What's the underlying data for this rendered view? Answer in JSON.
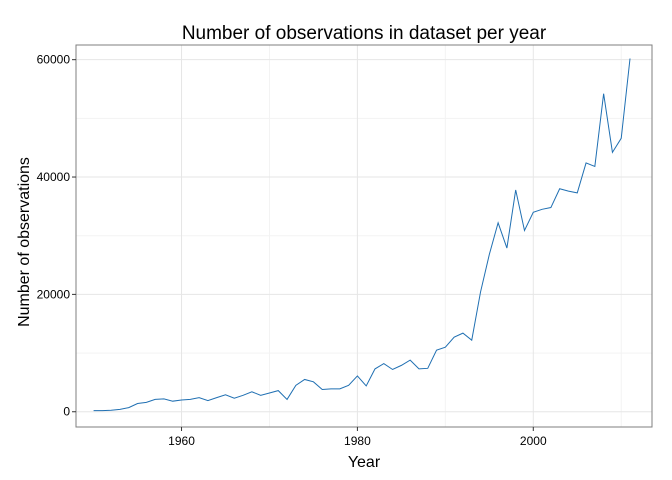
{
  "chart_data": {
    "type": "line",
    "title": "Number of observations in dataset per year",
    "xlabel": "Year",
    "ylabel": "Number of observations",
    "xlim": [
      1948,
      2013.5
    ],
    "ylim": [
      -2600,
      62500
    ],
    "x_ticks": [
      1960,
      1980,
      2000
    ],
    "y_ticks": [
      0,
      20000,
      40000,
      60000
    ],
    "x_tick_labels": [
      "1960",
      "1980",
      "2000"
    ],
    "y_tick_labels": [
      "0",
      "20000",
      "40000",
      "60000"
    ],
    "grid": true,
    "legend": "none",
    "line_color": "#1f6fb2",
    "x": [
      1950,
      1951,
      1952,
      1953,
      1954,
      1955,
      1956,
      1957,
      1958,
      1959,
      1960,
      1961,
      1962,
      1963,
      1964,
      1965,
      1966,
      1967,
      1968,
      1969,
      1970,
      1971,
      1972,
      1973,
      1974,
      1975,
      1976,
      1977,
      1978,
      1979,
      1980,
      1981,
      1982,
      1983,
      1984,
      1985,
      1986,
      1987,
      1988,
      1989,
      1990,
      1991,
      1992,
      1993,
      1994,
      1995,
      1996,
      1997,
      1998,
      1999,
      2000,
      2001,
      2002,
      2003,
      2004,
      2005,
      2006,
      2007,
      2008,
      2009,
      2010,
      2011
    ],
    "series": [
      {
        "values": [
          200,
          200,
          250,
          400,
          700,
          1400,
          1600,
          2100,
          2200,
          1800,
          2000,
          2100,
          2400,
          1900,
          2400,
          2900,
          2300,
          2800,
          3400,
          2800,
          3200,
          3600,
          2100,
          4500,
          5500,
          5100,
          3800,
          3900,
          3900,
          4500,
          6100,
          4400,
          7300,
          8200,
          7200,
          7900,
          8800,
          7300,
          7400,
          10500,
          11000,
          12700,
          13400,
          12200,
          20400,
          26800,
          32200,
          27900,
          37800,
          30900,
          34000,
          34500,
          34800,
          38000,
          37600,
          37300,
          42400,
          41800,
          54200,
          44200,
          46600,
          60200
        ]
      }
    ]
  }
}
